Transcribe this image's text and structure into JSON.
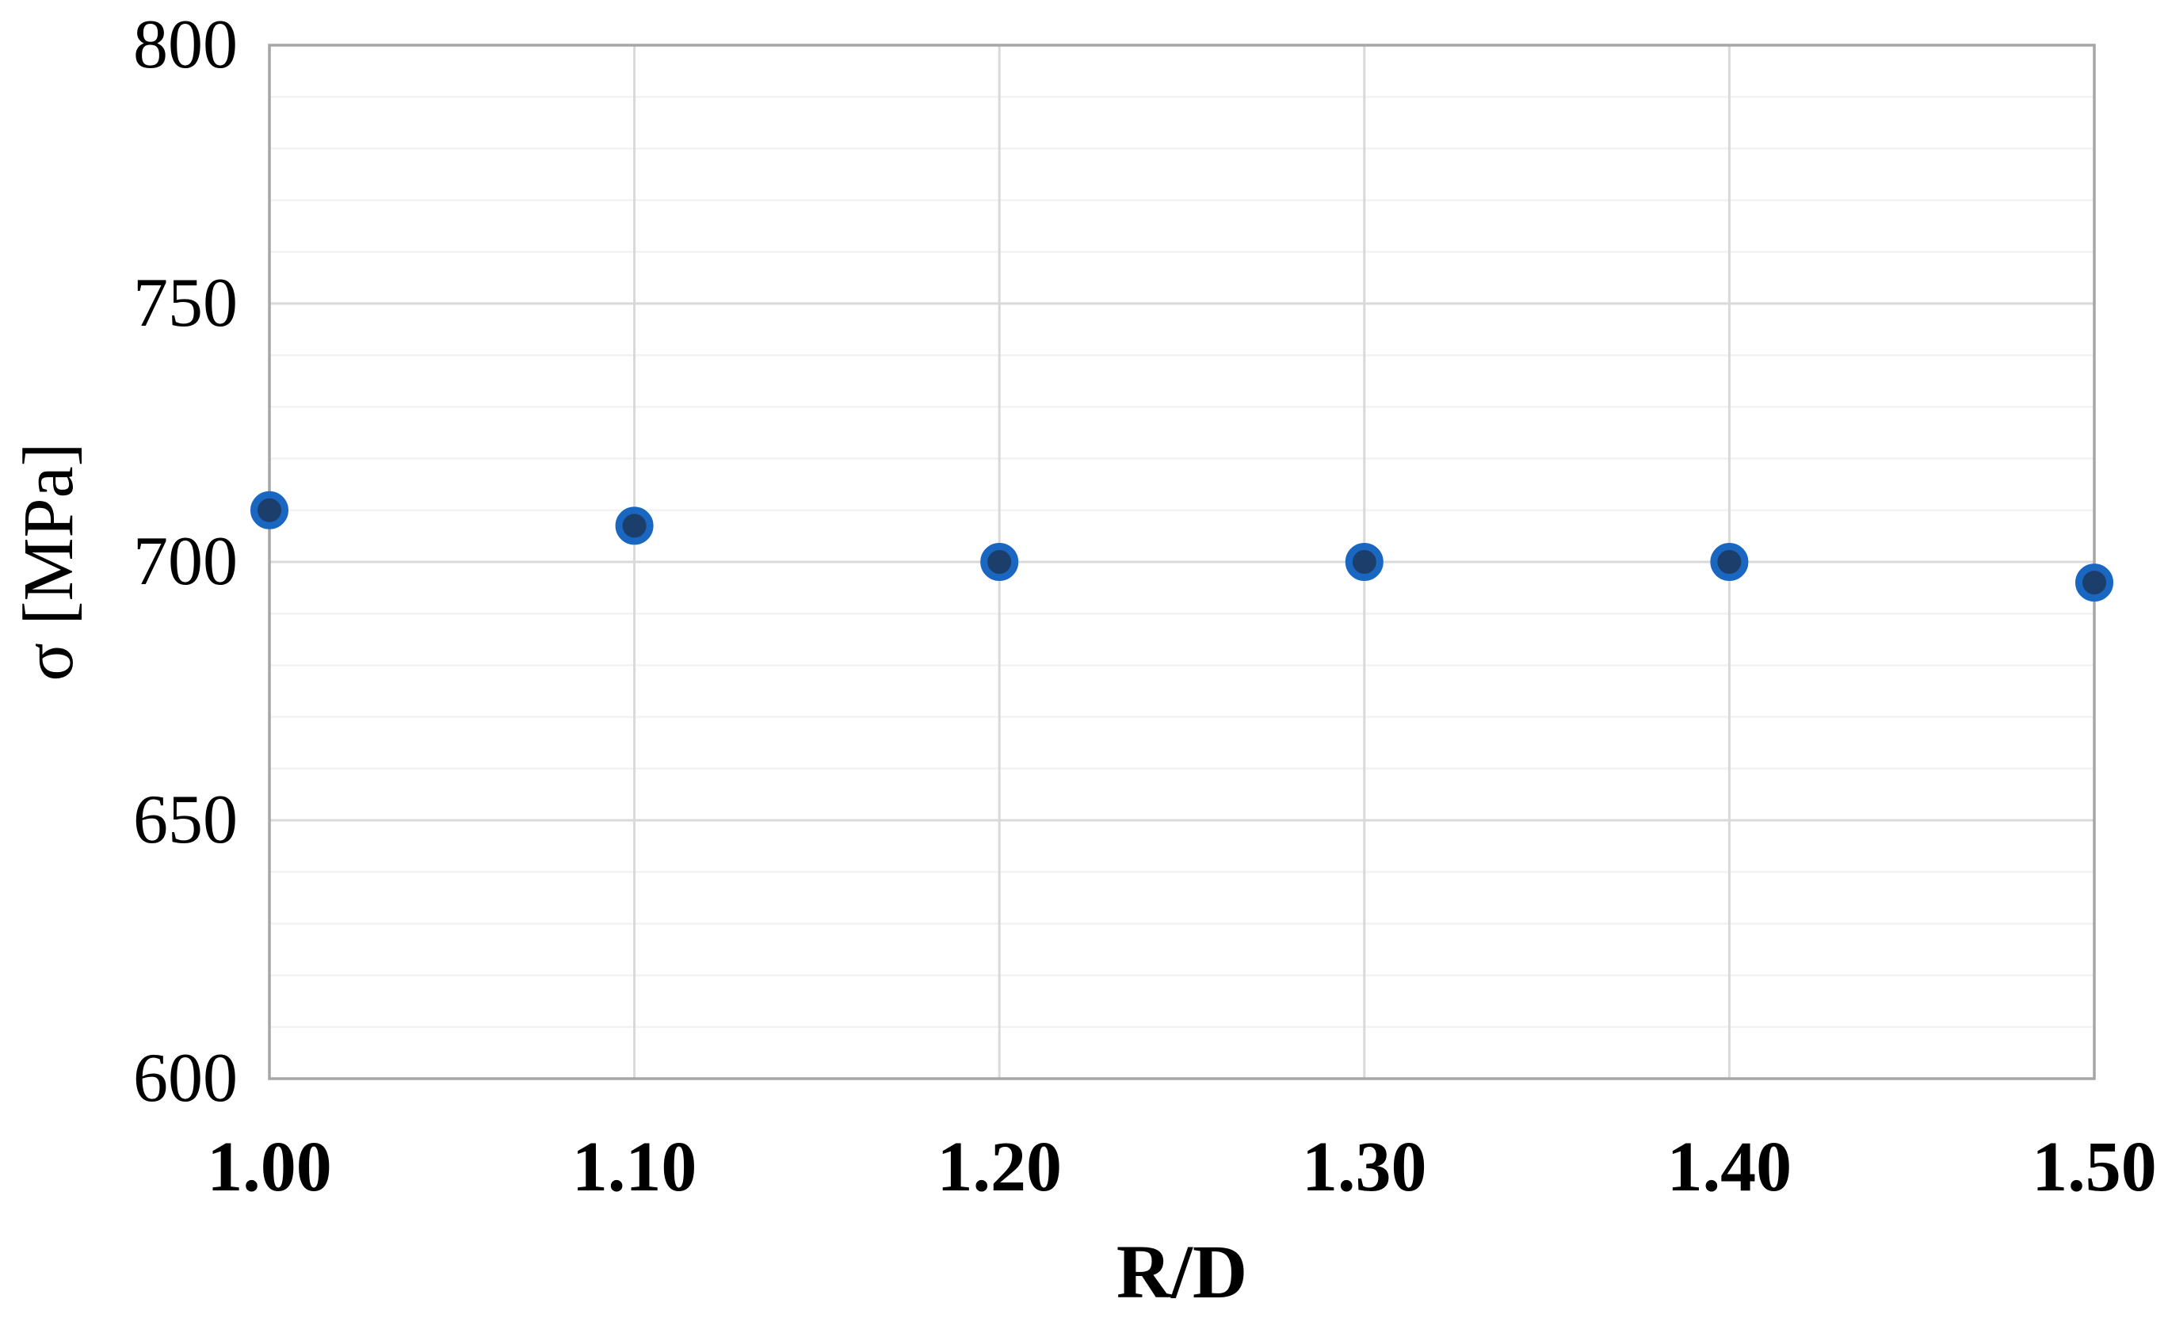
{
  "chart_data": {
    "type": "scatter",
    "title": "",
    "xlabel": "R/D",
    "ylabel": "σ [MPa]",
    "x": [
      1.0,
      1.1,
      1.2,
      1.3,
      1.4,
      1.5
    ],
    "y": [
      710,
      707,
      700,
      700,
      700,
      696
    ],
    "series_name": "",
    "xlim": [
      1.0,
      1.5
    ],
    "ylim": [
      600,
      800
    ],
    "xticks": [
      {
        "value": 1.0,
        "label": "1.00"
      },
      {
        "value": 1.1,
        "label": "1.10"
      },
      {
        "value": 1.2,
        "label": "1.20"
      },
      {
        "value": 1.3,
        "label": "1.30"
      },
      {
        "value": 1.4,
        "label": "1.40"
      },
      {
        "value": 1.5,
        "label": "1.50"
      }
    ],
    "yticks": [
      {
        "value": 600,
        "label": "600"
      },
      {
        "value": 650,
        "label": "650"
      },
      {
        "value": 700,
        "label": "700"
      },
      {
        "value": 750,
        "label": "750"
      },
      {
        "value": 800,
        "label": "800"
      }
    ],
    "y_minor_step": 10,
    "y_major_step": 50,
    "grid": {
      "minor_on": true,
      "major_on": true,
      "minor_color": "#f2f2f2",
      "major_color": "#d9d9d9",
      "border_color": "#a6a6a6"
    },
    "legend": {
      "visible": false
    },
    "marker": {
      "shape": "circle",
      "fill_color": "#1b3e6b",
      "ring_color": "#1a67c1"
    }
  }
}
